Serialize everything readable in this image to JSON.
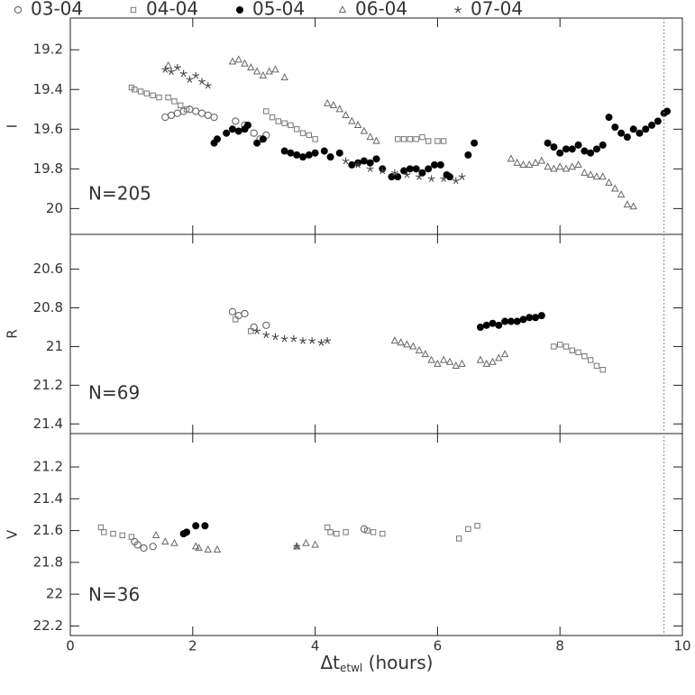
{
  "chart_data": [
    {
      "type": "scatter",
      "ylabel": "I",
      "annotation": "N=205",
      "ylim": [
        19.04,
        20.13
      ],
      "y_inverted": true,
      "yticks": [
        19.2,
        19.4,
        19.6,
        19.8,
        20
      ],
      "series": [
        {
          "name": "03-04",
          "marker": "circle-open",
          "color": "#666",
          "x": [
            1.55,
            1.65,
            1.75,
            1.85,
            1.95,
            2.05,
            2.15,
            2.25,
            2.35,
            2.7,
            2.85,
            3.0,
            3.1,
            3.2
          ],
          "values": [
            19.54,
            19.53,
            19.52,
            19.51,
            19.5,
            19.51,
            19.52,
            19.53,
            19.54,
            19.56,
            19.58,
            19.62,
            19.65,
            19.63
          ]
        },
        {
          "name": "04-04",
          "marker": "square-open",
          "color": "#777",
          "x": [
            1.0,
            1.05,
            1.15,
            1.25,
            1.35,
            1.45,
            1.6,
            1.7,
            1.8,
            1.9,
            3.2,
            3.3,
            3.4,
            3.5,
            3.6,
            3.7,
            3.8,
            3.9,
            4.0,
            5.35,
            5.45,
            5.55,
            5.65,
            5.75,
            5.85,
            6.0,
            6.1
          ],
          "values": [
            19.39,
            19.4,
            19.41,
            19.42,
            19.43,
            19.44,
            19.44,
            19.46,
            19.48,
            19.5,
            19.51,
            19.54,
            19.56,
            19.57,
            19.58,
            19.6,
            19.62,
            19.63,
            19.65,
            19.65,
            19.65,
            19.65,
            19.65,
            19.64,
            19.66,
            19.66,
            19.66
          ]
        },
        {
          "name": "05-04",
          "marker": "circle-filled",
          "color": "#000",
          "x": [
            2.35,
            2.4,
            2.55,
            2.65,
            2.75,
            2.85,
            2.9,
            3.05,
            3.15,
            3.5,
            3.6,
            3.7,
            3.8,
            3.9,
            4.0,
            4.15,
            4.25,
            4.4,
            4.6,
            4.7,
            4.8,
            4.9,
            5.0,
            5.1,
            5.25,
            5.35,
            5.45,
            5.55,
            5.65,
            5.75,
            5.85,
            5.95,
            6.05,
            6.15,
            6.2,
            6.5,
            6.6,
            7.8,
            7.9,
            8.0,
            8.1,
            8.2,
            8.3,
            8.4,
            8.5,
            8.6,
            8.7,
            8.8,
            8.9,
            9.0,
            9.1,
            9.2,
            9.3,
            9.4,
            9.5,
            9.6,
            9.7,
            9.75
          ],
          "values": [
            19.67,
            19.65,
            19.62,
            19.6,
            19.61,
            19.6,
            19.58,
            19.67,
            19.65,
            19.71,
            19.72,
            19.73,
            19.74,
            19.73,
            19.72,
            19.71,
            19.74,
            19.72,
            19.78,
            19.77,
            19.76,
            19.77,
            19.75,
            19.8,
            19.84,
            19.84,
            19.81,
            19.8,
            19.8,
            19.82,
            19.8,
            19.78,
            19.78,
            19.83,
            19.84,
            19.73,
            19.67,
            19.67,
            19.69,
            19.72,
            19.7,
            19.7,
            19.68,
            19.71,
            19.72,
            19.7,
            19.68,
            19.54,
            19.59,
            19.62,
            19.64,
            19.6,
            19.62,
            19.6,
            19.58,
            19.56,
            19.52,
            19.51
          ]
        },
        {
          "name": "06-04",
          "marker": "triangle-open",
          "color": "#666",
          "x": [
            1.6,
            2.65,
            2.75,
            2.85,
            2.95,
            3.05,
            3.15,
            3.25,
            3.35,
            3.5,
            4.2,
            4.3,
            4.4,
            4.5,
            4.6,
            4.7,
            4.8,
            4.9,
            5.0,
            7.2,
            7.3,
            7.4,
            7.5,
            7.6,
            7.7,
            7.8,
            7.9,
            8.0,
            8.1,
            8.2,
            8.3,
            8.4,
            8.5,
            8.6,
            8.7,
            8.8,
            8.9,
            9.0,
            9.1,
            9.2
          ],
          "values": [
            19.28,
            19.26,
            19.25,
            19.27,
            19.29,
            19.31,
            19.33,
            19.31,
            19.3,
            19.34,
            19.47,
            19.48,
            19.5,
            19.53,
            19.56,
            19.58,
            19.61,
            19.64,
            19.66,
            19.75,
            19.77,
            19.78,
            19.78,
            19.77,
            19.76,
            19.79,
            19.8,
            19.79,
            19.8,
            19.79,
            19.78,
            19.82,
            19.83,
            19.84,
            19.84,
            19.87,
            19.9,
            19.93,
            19.98,
            19.99
          ]
        },
        {
          "name": "07-04",
          "marker": "star",
          "color": "#444",
          "x": [
            1.55,
            1.65,
            1.75,
            1.85,
            1.95,
            2.05,
            2.15,
            2.25,
            4.5,
            4.7,
            4.9,
            5.1,
            5.3,
            5.5,
            5.7,
            5.9,
            6.1,
            6.3,
            6.4
          ],
          "values": [
            19.3,
            19.31,
            19.29,
            19.32,
            19.35,
            19.33,
            19.36,
            19.38,
            19.76,
            19.78,
            19.8,
            19.81,
            19.82,
            19.83,
            19.84,
            19.85,
            19.85,
            19.86,
            19.84
          ]
        }
      ]
    },
    {
      "type": "scatter",
      "ylabel": "R",
      "annotation": "N=69",
      "ylim": [
        20.42,
        21.45
      ],
      "y_inverted": true,
      "yticks": [
        20.6,
        20.8,
        21,
        21.2,
        21.4
      ],
      "series": [
        {
          "marker": "circle-open",
          "color": "#666",
          "x": [
            2.65,
            2.75,
            2.85,
            3.0,
            3.2
          ],
          "values": [
            20.82,
            20.84,
            20.83,
            20.9,
            20.89
          ]
        },
        {
          "marker": "square-open",
          "color": "#777",
          "x": [
            2.7,
            2.95,
            7.9,
            8.0,
            8.1,
            8.2,
            8.3,
            8.4,
            8.5,
            8.6,
            8.7
          ],
          "values": [
            20.86,
            20.92,
            21.0,
            20.99,
            21.0,
            21.02,
            21.03,
            21.05,
            21.07,
            21.1,
            21.12
          ]
        },
        {
          "marker": "circle-filled",
          "color": "#000",
          "x": [
            6.7,
            6.8,
            6.9,
            7.0,
            7.1,
            7.2,
            7.3,
            7.4,
            7.5,
            7.6,
            7.7
          ],
          "values": [
            20.9,
            20.89,
            20.88,
            20.89,
            20.87,
            20.87,
            20.87,
            20.86,
            20.85,
            20.85,
            20.84
          ]
        },
        {
          "marker": "triangle-open",
          "color": "#666",
          "x": [
            5.3,
            5.4,
            5.5,
            5.6,
            5.7,
            5.8,
            5.9,
            6.0,
            6.1,
            6.2,
            6.3,
            6.4,
            6.7,
            6.8,
            6.9,
            7.0,
            7.1
          ],
          "values": [
            20.97,
            20.98,
            20.99,
            21.0,
            21.02,
            21.04,
            21.07,
            21.09,
            21.07,
            21.08,
            21.1,
            21.09,
            21.07,
            21.09,
            21.08,
            21.06,
            21.04
          ]
        },
        {
          "marker": "star",
          "color": "#444",
          "x": [
            3.05,
            3.2,
            3.35,
            3.5,
            3.65,
            3.8,
            3.95,
            4.1,
            4.2
          ],
          "values": [
            20.92,
            20.94,
            20.95,
            20.96,
            20.96,
            20.97,
            20.97,
            20.98,
            20.97
          ]
        }
      ]
    },
    {
      "type": "scatter",
      "ylabel": "V",
      "annotation": "N=36",
      "ylim": [
        20.99,
        22.26
      ],
      "y_inverted": true,
      "yticks": [
        21.2,
        21.4,
        21.6,
        21.8,
        22,
        22.2
      ],
      "xlim": [
        0,
        10
      ],
      "xticks": [
        0,
        2,
        4,
        6,
        8,
        10
      ],
      "xlabel": {
        "main": "Δt",
        "sub": "etwl",
        "rest": "(hours)"
      },
      "vline": 9.7,
      "series": [
        {
          "marker": "circle-open",
          "color": "#666",
          "x": [
            1.05,
            1.1,
            1.2,
            1.35,
            4.8
          ],
          "values": [
            21.67,
            21.69,
            21.71,
            21.7,
            21.59
          ]
        },
        {
          "marker": "square-open",
          "color": "#777",
          "x": [
            0.5,
            0.55,
            0.7,
            0.85,
            1.0,
            4.2,
            4.25,
            4.35,
            4.5,
            4.85,
            4.95,
            5.1,
            6.35,
            6.5,
            6.65
          ],
          "values": [
            21.58,
            21.61,
            21.62,
            21.63,
            21.64,
            21.58,
            21.61,
            21.62,
            21.61,
            21.6,
            21.61,
            21.62,
            21.65,
            21.59,
            21.57
          ]
        },
        {
          "marker": "circle-filled",
          "color": "#000",
          "x": [
            1.85,
            1.9,
            2.05,
            2.2
          ],
          "values": [
            21.62,
            21.61,
            21.57,
            21.57
          ]
        },
        {
          "marker": "triangle-open",
          "color": "#666",
          "x": [
            1.4,
            1.55,
            1.7,
            2.05,
            2.1,
            2.25,
            2.4,
            3.7,
            3.85,
            4.0
          ],
          "values": [
            21.63,
            21.67,
            21.68,
            21.7,
            21.71,
            21.72,
            21.72,
            21.7,
            21.68,
            21.69
          ]
        },
        {
          "marker": "star",
          "color": "#444",
          "x": [
            3.7
          ],
          "values": [
            21.7
          ]
        }
      ]
    }
  ]
}
